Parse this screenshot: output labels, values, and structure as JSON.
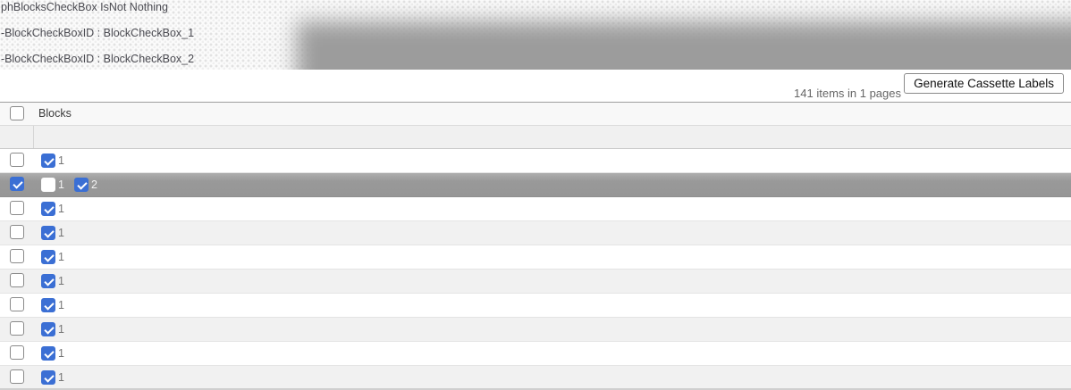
{
  "debug": {
    "lines": [
      "phBlocksCheckBox IsNot Nothing",
      "-BlockCheckBoxID : BlockCheckBox_1",
      "-BlockCheckBoxID : BlockCheckBox_2"
    ]
  },
  "toolbar": {
    "items_summary": "141 items in 1 pages",
    "generate_button_label": "Generate Cassette Labels"
  },
  "grid": {
    "header": {
      "column_label": "Blocks",
      "select_all_checked": false
    },
    "rows": [
      {
        "selected": false,
        "selector_checked": false,
        "blocks": [
          {
            "label": "1",
            "checked": true
          }
        ]
      },
      {
        "selected": true,
        "selector_checked": true,
        "blocks": [
          {
            "label": "1",
            "checked": false
          },
          {
            "label": "2",
            "checked": true
          }
        ]
      },
      {
        "selected": false,
        "selector_checked": false,
        "blocks": [
          {
            "label": "1",
            "checked": true
          }
        ]
      },
      {
        "selected": false,
        "selector_checked": false,
        "blocks": [
          {
            "label": "1",
            "checked": true
          }
        ]
      },
      {
        "selected": false,
        "selector_checked": false,
        "blocks": [
          {
            "label": "1",
            "checked": true
          }
        ]
      },
      {
        "selected": false,
        "selector_checked": false,
        "blocks": [
          {
            "label": "1",
            "checked": true
          }
        ]
      },
      {
        "selected": false,
        "selector_checked": false,
        "blocks": [
          {
            "label": "1",
            "checked": true
          }
        ]
      },
      {
        "selected": false,
        "selector_checked": false,
        "blocks": [
          {
            "label": "1",
            "checked": true
          }
        ]
      },
      {
        "selected": false,
        "selector_checked": false,
        "blocks": [
          {
            "label": "1",
            "checked": true
          }
        ]
      },
      {
        "selected": false,
        "selector_checked": false,
        "blocks": [
          {
            "label": "1",
            "checked": true
          }
        ]
      }
    ]
  },
  "colors": {
    "checkbox_blue": "#3b6fd4",
    "selected_row_gray": "#9a9a9a",
    "banner_overlay_gray": "#9c9c9c",
    "alt_row_gray": "#f1f1f1"
  }
}
